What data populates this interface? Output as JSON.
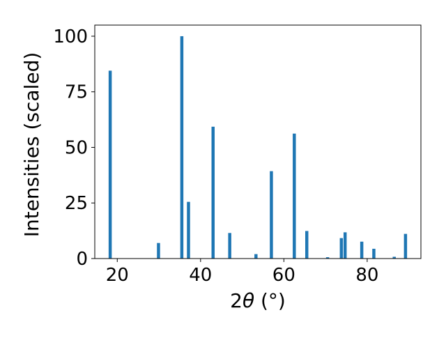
{
  "chart_data": {
    "type": "bar",
    "xlabel_main": "2",
    "xlabel_theta": "θ",
    "xlabel_unit": " (°)",
    "ylabel": "Intensities (scaled)",
    "xlim": [
      14.6,
      92.9
    ],
    "ylim": [
      0,
      105
    ],
    "xticks": [
      20,
      40,
      60,
      80
    ],
    "yticks": [
      0,
      25,
      50,
      75,
      100
    ],
    "bar_width": 0.75,
    "grid": false,
    "color": "#1f77b4",
    "x": [
      18.3,
      29.9,
      35.5,
      37.1,
      43.0,
      47.0,
      53.3,
      57.0,
      62.5,
      65.5,
      70.5,
      73.8,
      74.7,
      78.7,
      81.6,
      86.5,
      89.2
    ],
    "values": [
      84.5,
      7.0,
      100.0,
      25.5,
      59.3,
      11.5,
      2.0,
      39.3,
      56.2,
      12.4,
      0.6,
      9.2,
      11.8,
      7.6,
      4.4,
      0.8,
      11.1
    ]
  }
}
